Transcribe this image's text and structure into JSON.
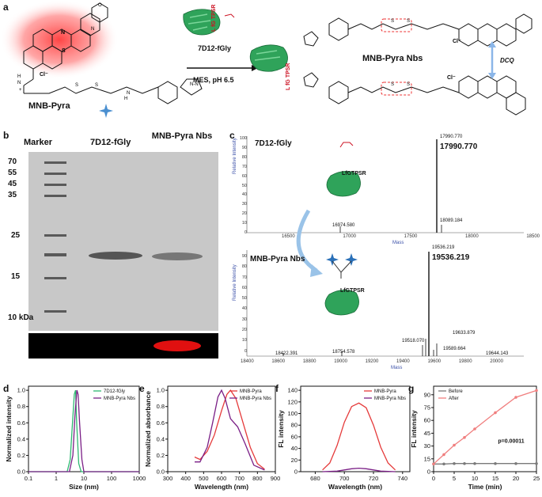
{
  "panels": {
    "a": {
      "letter": "a",
      "compound": "MNB-Pyra",
      "protein": "7D12-fGly",
      "reagent": "7D12-fGly",
      "condition": "MES, pH 6.5",
      "product": "MNB-Pyra Nbs",
      "dimer_label": "DCQ",
      "tag": "LfGTPSR",
      "chloride": "Cl⁻",
      "nh": "H N",
      "plus": "+"
    },
    "b": {
      "letter": "b",
      "lanes": [
        "Marker",
        "7D12-fGly",
        "MNB-Pyra Nbs"
      ],
      "mw_markers": [
        "70",
        "55",
        "45",
        "35",
        "25",
        "15",
        "10 kDa"
      ]
    },
    "c": {
      "letter": "c",
      "top": {
        "title": "7D12-fGly",
        "mass_label": "17990.770",
        "peak_small": "17990.770",
        "peaks": [
          "16974.580",
          "18089.184"
        ],
        "x_ticks": [
          "16500",
          "17000",
          "17500",
          "18000",
          "18500"
        ],
        "y_ticks": [
          "0",
          "10",
          "20",
          "30",
          "40",
          "50",
          "60",
          "70",
          "80",
          "90",
          "100"
        ],
        "xlabel": "Mass",
        "ylabel": "Relative Intensity",
        "tag": "LfGTPSR"
      },
      "bottom": {
        "title": "MNB-Pyra Nbs",
        "mass_label": "19536.219",
        "peak_small": "19536.219",
        "peaks": [
          "18422.391",
          "18754.578",
          "19518.070",
          "19589.664",
          "19633.879",
          "19644.143"
        ],
        "x_ticks": [
          "18400",
          "18600",
          "18800",
          "19000",
          "19200",
          "19400",
          "19600",
          "19800",
          "20000"
        ],
        "y_ticks": [
          "0",
          "10",
          "20",
          "30",
          "40",
          "50",
          "60",
          "70",
          "80",
          "90"
        ],
        "xlabel": "Mass",
        "ylabel": "Relative Intensity",
        "tag": "LfGTPSR"
      }
    }
  },
  "chart_data": [
    {
      "panel": "d",
      "type": "line",
      "xlabel": "Size (nm)",
      "ylabel": "Normalized intensity",
      "xscale": "log",
      "xlim": [
        0.1,
        1000
      ],
      "ylim": [
        0,
        1.0
      ],
      "x_ticks": [
        "0.1",
        "1",
        "10",
        "100",
        "1000"
      ],
      "y_ticks": [
        "0.0",
        "0.2",
        "0.4",
        "0.6",
        "0.8",
        "1.0"
      ],
      "legend": "top-right",
      "series": [
        {
          "name": "7D12-fGly",
          "color": "#2fb872",
          "x": [
            0.1,
            2.5,
            3.2,
            3.8,
            4.5,
            5.0,
            5.5,
            6.5,
            8.0,
            1000
          ],
          "y": [
            0,
            0,
            0.15,
            0.55,
            0.95,
            1.0,
            0.6,
            0.1,
            0,
            0
          ]
        },
        {
          "name": "MNB-Pyra Nbs",
          "color": "#7a1f86",
          "x": [
            0.1,
            3.0,
            4.0,
            4.8,
            5.6,
            6.2,
            7.0,
            8.5,
            10.0,
            1000
          ],
          "y": [
            0,
            0,
            0.2,
            0.7,
            1.0,
            0.95,
            0.6,
            0.15,
            0,
            0
          ]
        }
      ]
    },
    {
      "panel": "e",
      "type": "line",
      "xlabel": "Wavelength (nm)",
      "ylabel": "Normalized absorbance",
      "xlim": [
        300,
        900
      ],
      "ylim": [
        0,
        1.0
      ],
      "x_ticks": [
        "300",
        "400",
        "500",
        "600",
        "700",
        "800",
        "900"
      ],
      "y_ticks": [
        "0.0",
        "0.2",
        "0.4",
        "0.6",
        "0.8",
        "1.0"
      ],
      "legend": "top-right",
      "series": [
        {
          "name": "MNB-Pyra",
          "color": "#e53a3a",
          "x": [
            450,
            480,
            520,
            560,
            600,
            630,
            650,
            680,
            720,
            760,
            800,
            840
          ],
          "y": [
            0.18,
            0.15,
            0.25,
            0.45,
            0.75,
            0.95,
            1.0,
            0.9,
            0.6,
            0.3,
            0.1,
            0.03
          ]
        },
        {
          "name": "MNB-Pyra Nbs",
          "color": "#7a1f86",
          "x": [
            450,
            480,
            520,
            550,
            580,
            600,
            620,
            650,
            690,
            730,
            780,
            840
          ],
          "y": [
            0.12,
            0.12,
            0.3,
            0.6,
            0.92,
            1.0,
            0.9,
            0.65,
            0.55,
            0.35,
            0.08,
            0.02
          ]
        }
      ]
    },
    {
      "panel": "f",
      "type": "line",
      "xlabel": "Wavelength (nm)",
      "ylabel": "FL intensity",
      "xlim": [
        670,
        745
      ],
      "ylim": [
        0,
        140
      ],
      "x_ticks": [
        "680",
        "700",
        "720",
        "740"
      ],
      "y_ticks": [
        "0",
        "20",
        "40",
        "60",
        "80",
        "100",
        "120",
        "140"
      ],
      "legend": "top-right",
      "series": [
        {
          "name": "MNB-Pyra",
          "color": "#e53a3a",
          "x": [
            685,
            690,
            695,
            700,
            705,
            710,
            715,
            720,
            725,
            730,
            735
          ],
          "y": [
            3,
            15,
            45,
            85,
            112,
            118,
            110,
            80,
            42,
            15,
            3
          ]
        },
        {
          "name": "MNB-Pyra Nbs",
          "color": "#7a1f86",
          "x": [
            685,
            695,
            700,
            705,
            710,
            715,
            720,
            725,
            735
          ],
          "y": [
            0,
            1,
            3,
            5,
            6,
            5,
            3,
            1,
            0
          ]
        }
      ]
    },
    {
      "panel": "g",
      "type": "line",
      "xlabel": "Time (min)",
      "ylabel": "FL intensity",
      "xlim": [
        0,
        25
      ],
      "ylim": [
        0,
        100
      ],
      "x_ticks": [
        "0",
        "5",
        "10",
        "15",
        "20",
        "25"
      ],
      "y_ticks": [
        "0",
        "15",
        "30",
        "45",
        "60",
        "75",
        "90"
      ],
      "legend": "top-left",
      "annotation": "p=0.00011",
      "series": [
        {
          "name": "Before",
          "color": "#7a7a7a",
          "x": [
            0,
            2.5,
            5,
            7.5,
            10,
            15,
            20,
            25
          ],
          "y": [
            9,
            9,
            9.5,
            9.5,
            9.5,
            9.5,
            9.5,
            9.5
          ]
        },
        {
          "name": "After",
          "color": "#f07f7f",
          "x": [
            0,
            2.5,
            5,
            7.5,
            10,
            15,
            20,
            25
          ],
          "y": [
            9,
            20,
            31,
            40,
            50,
            69,
            87,
            95
          ]
        }
      ]
    }
  ]
}
